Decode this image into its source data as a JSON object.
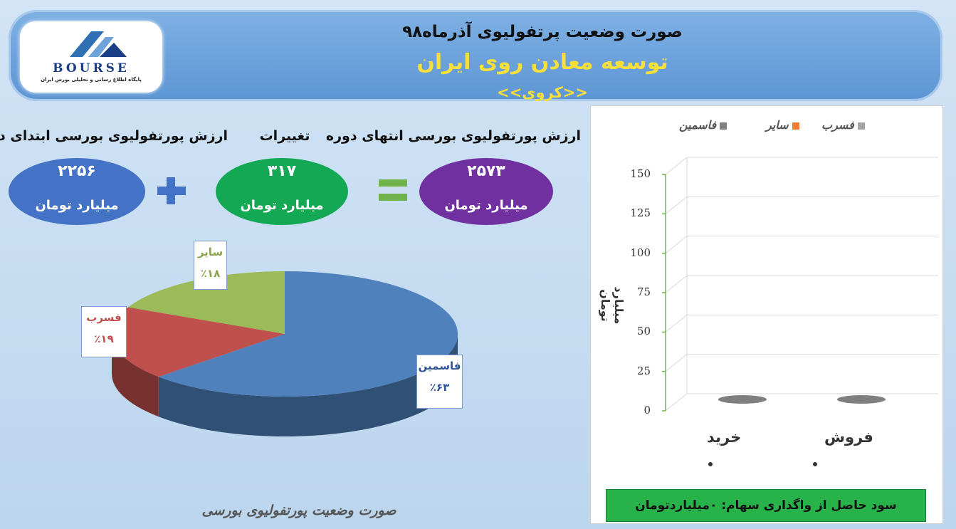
{
  "header": {
    "title": "صورت وضعیت پرتفولیوی آذرماه۹۸",
    "company": "توسعه معادن روی ایران",
    "symbol": "<<کروی>>"
  },
  "logo": {
    "text": "BOURSE",
    "subtitle": "پایگاه اطلاع رسانی و تحلیلی بورس ایران"
  },
  "summary": {
    "start_label": "ارزش پورتفولیوی بورسی ابتدای دوره",
    "start_value": "۲۲۵۶",
    "change_label": "تغییرات",
    "change_value": "۳۱۷",
    "end_label": "ارزش پورتفولیوی بورسی انتهای دوره",
    "end_value": "۲۵۷۳",
    "unit": "میلیارد تومان",
    "colors": {
      "start": "#4472c4",
      "change": "#13a853",
      "end": "#7030a0"
    }
  },
  "pie": {
    "slices": [
      {
        "name": "فاسمین",
        "percent_label": "٪۶۳",
        "value": 63,
        "color": "#4f81bd",
        "label_color": "#2f5597"
      },
      {
        "name": "فسرب",
        "percent_label": "٪۱۹",
        "value": 19,
        "color": "#c0504d",
        "label_color": "#c0504d"
      },
      {
        "name": "سایر",
        "percent_label": "٪۱۸",
        "value": 18,
        "color": "#9bbb59",
        "label_color": "#8aa54a"
      }
    ]
  },
  "footer_caption": "صورت وضعیت پورتفولیوی بورسی",
  "chart_data": {
    "type": "bar",
    "categories": [
      "خرید",
      "فروش"
    ],
    "series": [
      {
        "name": "فسرب",
        "values": [
          0,
          0
        ],
        "color": "#a5a5a5"
      },
      {
        "name": "سایر",
        "values": [
          0,
          0
        ],
        "color": "#ed7d31"
      },
      {
        "name": "فاسمین",
        "values": [
          0,
          0
        ],
        "color": "#7f7f7f"
      }
    ],
    "category_value_labels": [
      "۰",
      "۰"
    ],
    "ylabel": "میلیارد تومان",
    "ylim": [
      0,
      150
    ],
    "yticks": [
      0,
      25,
      50,
      75,
      100,
      125,
      150
    ],
    "grid": true,
    "legend": "top"
  },
  "profit_text": "سود حاصل از واگذاری سهام: ۰میلیاردتومان"
}
